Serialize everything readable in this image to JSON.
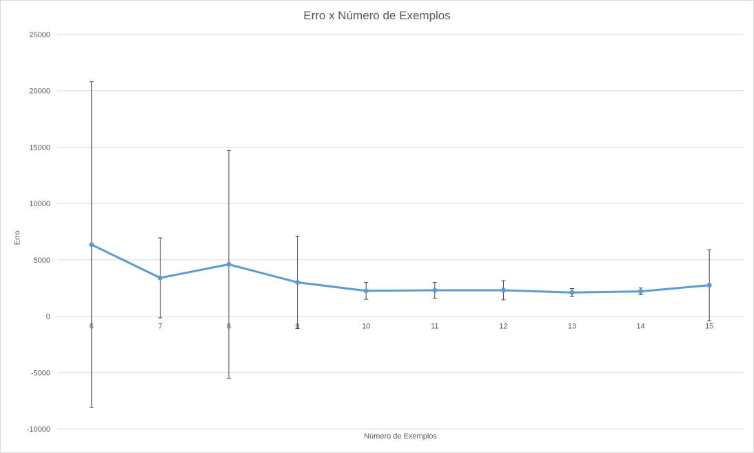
{
  "chart_data": {
    "type": "line",
    "title": "Erro x Número de Exemplos",
    "xlabel": "Número de Exemplos",
    "ylabel": "Erro",
    "categories": [
      "6",
      "7",
      "8",
      "9",
      "10",
      "11",
      "12",
      "13",
      "14",
      "15"
    ],
    "series": [
      {
        "values": [
          6350,
          3400,
          4600,
          3000,
          2250,
          2300,
          2300,
          2100,
          2200,
          2750
        ],
        "error_plus": [
          14450,
          3550,
          10100,
          4100,
          750,
          700,
          850,
          350,
          300,
          3150
        ],
        "error_minus": [
          14450,
          3550,
          10100,
          4100,
          750,
          700,
          850,
          350,
          300,
          3150
        ],
        "color": "#5b9bd5"
      }
    ],
    "ylim": [
      -10000,
      25000
    ],
    "yticks": [
      "-10000",
      "-5000",
      "0",
      "5000",
      "10000",
      "15000",
      "20000",
      "25000"
    ],
    "grid": true,
    "legend": "none"
  }
}
